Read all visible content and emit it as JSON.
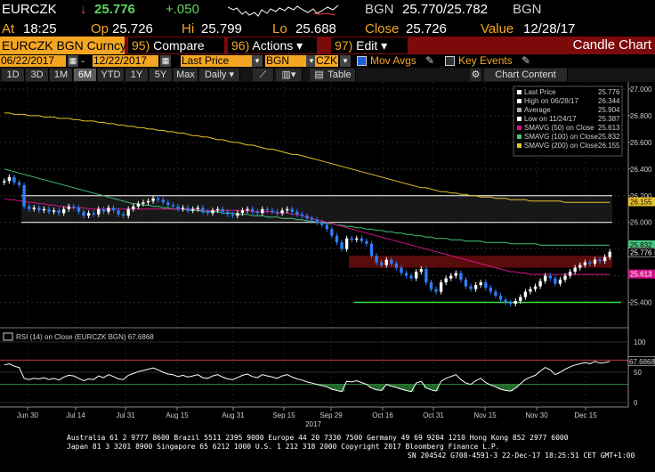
{
  "colors": {
    "amber": "#f4a623",
    "bg": "#000000",
    "menu_red": "#7d0a0a",
    "candle_up": "#ffffff",
    "candle_down": "#2d7fff",
    "sma50": "#d4148c",
    "sma100": "#44c47a",
    "sma200": "#e8c42c",
    "support": "#33dd33",
    "resistance_zone": "#5a0b0b"
  },
  "quote": {
    "ticker": "EURCZK",
    "last": "25.776",
    "arrow": "↓",
    "change": "+.050",
    "currency": "BGN",
    "bid_ask": "25.770/25.782",
    "currency2": "BGN",
    "at_label": "At",
    "time": "18:25",
    "open_label": "Op",
    "open": "25.726",
    "high_label": "Hi",
    "high": "25.799",
    "low_label": "Lo",
    "low": "25.688",
    "close_label": "Close",
    "close": "25.726",
    "value_label": "Value",
    "value_date": "12/28/17"
  },
  "menubar": {
    "security": "EURCZK BGN Curncy",
    "btn_compare_num": "95)",
    "btn_compare": "Compare",
    "btn_actions_num": "96)",
    "btn_actions": "Actions ▾",
    "btn_edit_num": "97)",
    "btn_edit": "Edit ▾",
    "title": "Candle Chart"
  },
  "params": {
    "start_date": "06/22/2017",
    "end_date": "12/22/2017",
    "field": "Last Price",
    "pricing_source": "BGN",
    "currency": "CZK",
    "mov_avgs": "Mov Avgs",
    "key_events": "Key Events"
  },
  "ranges": [
    "1D",
    "3D",
    "1M",
    "6M",
    "YTD",
    "1Y",
    "5Y",
    "Max"
  ],
  "selected_range": "6M",
  "periodicity": "Daily ▾",
  "table_btn": "Table",
  "chart_content_btn": "Chart Content",
  "legend": [
    {
      "label": "Last Price",
      "value": "25.776"
    },
    {
      "label": "High on 06/28/17",
      "value": "26.344"
    },
    {
      "label": "Average",
      "value": "25.904"
    },
    {
      "label": "Low on 11/24/17",
      "value": "25.387"
    },
    {
      "label": "SMAVG (50) on Close",
      "value": "25.613"
    },
    {
      "label": "SMAVG (100) on Close",
      "value": "25.832"
    },
    {
      "label": "SMAVG (200) on Close",
      "value": "26.155"
    }
  ],
  "rsi_label": "RSI (14) on Close (EURCZK BGN) 67.6868",
  "rsi_value_tag": "67.6868",
  "chart_data": {
    "type": "candlestick",
    "y_axis_ticks": [
      "27.000",
      "26.800",
      "26.600",
      "26.400",
      "26.200",
      "26.000",
      "25.800",
      "25.600",
      "25.400"
    ],
    "y_range": [
      25.25,
      27.0
    ],
    "rsi_ticks": [
      "100",
      "50",
      "0"
    ],
    "x_labels": [
      "Jun 30",
      "Jul 14",
      "Jul 31",
      "Aug 15",
      "Aug 31",
      "Sep 15",
      "Sep 29",
      "Oct 16",
      "Oct 31",
      "Nov 15",
      "Nov 30",
      "Dec 15"
    ],
    "x_year_label": "2017",
    "price_tags": {
      "sma200": "26.155",
      "sma100": "25.832",
      "last": "25.776",
      "sma50": "25.613"
    },
    "closes": [
      26.31,
      26.34,
      26.3,
      26.28,
      26.12,
      26.1,
      26.11,
      26.09,
      26.1,
      26.08,
      26.09,
      26.07,
      26.1,
      26.12,
      26.11,
      26.08,
      26.05,
      26.07,
      26.06,
      26.1,
      26.08,
      26.11,
      26.09,
      26.06,
      26.05,
      26.1,
      26.12,
      26.14,
      26.15,
      26.16,
      26.18,
      26.17,
      26.15,
      26.13,
      26.12,
      26.1,
      26.11,
      26.09,
      26.1,
      26.11,
      26.08,
      26.07,
      26.09,
      26.1,
      26.08,
      26.06,
      26.05,
      26.07,
      26.09,
      26.1,
      26.08,
      26.07,
      26.1,
      26.09,
      26.08,
      26.07,
      26.09,
      26.1,
      26.08,
      26.06,
      26.05,
      26.03,
      26.02,
      26.0,
      25.98,
      25.95,
      25.9,
      25.85,
      25.8,
      25.88,
      25.87,
      25.88,
      25.86,
      25.84,
      25.75,
      25.7,
      25.68,
      25.72,
      25.69,
      25.66,
      25.62,
      25.6,
      25.58,
      25.63,
      25.65,
      25.55,
      25.5,
      25.48,
      25.55,
      25.58,
      25.6,
      25.62,
      25.57,
      25.52,
      25.5,
      25.53,
      25.55,
      25.51,
      25.48,
      25.45,
      25.42,
      25.4,
      25.39,
      25.41,
      25.44,
      25.48,
      25.5,
      25.52,
      25.56,
      25.6,
      25.58,
      25.54,
      25.57,
      25.6,
      25.63,
      25.66,
      25.68,
      25.7,
      25.69,
      25.72,
      25.71,
      25.74,
      25.78
    ],
    "sma50": [
      26.18,
      26.17,
      26.17,
      26.16,
      26.16,
      26.15,
      26.15,
      26.14,
      26.14,
      26.13,
      26.13,
      26.12,
      26.12,
      26.11,
      26.11,
      26.11,
      26.11,
      26.1,
      26.1,
      26.1,
      26.1,
      26.1,
      26.1,
      26.1,
      26.1,
      26.1,
      26.1,
      26.1,
      26.1,
      26.1,
      26.1,
      26.1,
      26.1,
      26.1,
      26.1,
      26.1,
      26.1,
      26.1,
      26.1,
      26.1,
      26.09,
      26.09,
      26.09,
      26.09,
      26.09,
      26.09,
      26.09,
      26.09,
      26.09,
      26.09,
      26.08,
      26.08,
      26.08,
      26.08,
      26.08,
      26.07,
      26.07,
      26.07,
      26.06,
      26.06,
      26.05,
      26.04,
      26.03,
      26.02,
      26.01,
      26.0,
      25.99,
      25.98,
      25.97,
      25.96,
      25.95,
      25.94,
      25.93,
      25.92,
      25.91,
      25.9,
      25.89,
      25.88,
      25.87,
      25.86,
      25.85,
      25.84,
      25.83,
      25.82,
      25.81,
      25.8,
      25.79,
      25.78,
      25.77,
      25.76,
      25.75,
      25.74,
      25.73,
      25.72,
      25.71,
      25.7,
      25.69,
      25.68,
      25.67,
      25.66,
      25.65,
      25.64,
      25.63,
      25.63,
      25.62,
      25.62,
      25.61,
      25.61,
      25.61,
      25.61,
      25.61,
      25.61,
      25.61,
      25.61,
      25.61,
      25.61,
      25.61,
      25.61,
      25.61,
      25.61,
      25.61,
      25.61,
      25.61
    ],
    "sma100": [
      26.4,
      26.39,
      26.38,
      26.37,
      26.36,
      26.35,
      26.34,
      26.33,
      26.32,
      26.31,
      26.3,
      26.29,
      26.28,
      26.27,
      26.26,
      26.25,
      26.24,
      26.23,
      26.22,
      26.21,
      26.2,
      26.19,
      26.18,
      26.17,
      26.16,
      26.15,
      26.14,
      26.14,
      26.13,
      26.13,
      26.12,
      26.12,
      26.11,
      26.11,
      26.1,
      26.1,
      26.1,
      26.09,
      26.09,
      26.09,
      26.08,
      26.08,
      26.08,
      26.08,
      26.07,
      26.07,
      26.07,
      26.06,
      26.06,
      26.06,
      26.05,
      26.05,
      26.05,
      26.04,
      26.04,
      26.04,
      26.03,
      26.03,
      26.03,
      26.02,
      26.02,
      26.01,
      26.01,
      26.0,
      26.0,
      25.99,
      25.99,
      25.98,
      25.98,
      25.97,
      25.97,
      25.96,
      25.96,
      25.95,
      25.95,
      25.94,
      25.94,
      25.93,
      25.93,
      25.92,
      25.92,
      25.91,
      25.91,
      25.9,
      25.9,
      25.89,
      25.89,
      25.88,
      25.88,
      25.88,
      25.87,
      25.87,
      25.87,
      25.86,
      25.86,
      25.86,
      25.86,
      25.85,
      25.85,
      25.85,
      25.85,
      25.85,
      25.84,
      25.84,
      25.84,
      25.84,
      25.84,
      25.84,
      25.83,
      25.83,
      25.83,
      25.83,
      25.83,
      25.83,
      25.83,
      25.83,
      25.83,
      25.83,
      25.83,
      25.83,
      25.83,
      25.83,
      25.83
    ],
    "sma200": [
      26.82,
      26.82,
      26.81,
      26.81,
      26.81,
      26.8,
      26.8,
      26.8,
      26.79,
      26.79,
      26.79,
      26.78,
      26.78,
      26.78,
      26.77,
      26.77,
      26.76,
      26.76,
      26.76,
      26.75,
      26.75,
      26.74,
      26.74,
      26.73,
      26.73,
      26.72,
      26.72,
      26.71,
      26.71,
      26.7,
      26.7,
      26.69,
      26.69,
      26.68,
      26.68,
      26.67,
      26.67,
      26.66,
      26.65,
      26.65,
      26.64,
      26.64,
      26.63,
      26.62,
      26.62,
      26.61,
      26.6,
      26.6,
      26.59,
      26.58,
      26.58,
      26.57,
      26.56,
      26.55,
      26.55,
      26.54,
      26.53,
      26.52,
      26.51,
      26.51,
      26.5,
      26.49,
      26.48,
      26.47,
      26.46,
      26.45,
      26.44,
      26.43,
      26.42,
      26.41,
      26.4,
      26.39,
      26.38,
      26.37,
      26.36,
      26.35,
      26.34,
      26.33,
      26.32,
      26.31,
      26.3,
      26.29,
      26.28,
      26.27,
      26.26,
      26.26,
      26.25,
      26.24,
      26.23,
      26.23,
      26.22,
      26.22,
      26.21,
      26.21,
      26.2,
      26.2,
      26.19,
      26.19,
      26.19,
      26.18,
      26.18,
      26.18,
      26.17,
      26.17,
      26.17,
      26.17,
      26.16,
      26.16,
      26.16,
      26.16,
      26.16,
      26.16,
      26.16,
      26.15,
      26.15,
      26.15,
      26.15,
      26.15,
      26.15,
      26.15,
      26.15,
      26.15,
      26.15
    ],
    "rsi": [
      62,
      64,
      60,
      58,
      40,
      38,
      40,
      39,
      41,
      38,
      40,
      37,
      42,
      45,
      44,
      40,
      36,
      39,
      38,
      44,
      41,
      46,
      43,
      39,
      38,
      45,
      48,
      51,
      53,
      55,
      57,
      54,
      50,
      47,
      46,
      43,
      45,
      42,
      44,
      46,
      41,
      40,
      44,
      46,
      42,
      39,
      38,
      41,
      45,
      47,
      43,
      41,
      46,
      44,
      42,
      40,
      44,
      46,
      42,
      39,
      37,
      34,
      32,
      30,
      28,
      26,
      22,
      20,
      18,
      35,
      34,
      36,
      33,
      30,
      24,
      21,
      20,
      30,
      27,
      25,
      22,
      20,
      18,
      32,
      35,
      24,
      21,
      19,
      35,
      40,
      43,
      46,
      38,
      32,
      30,
      36,
      40,
      33,
      29,
      26,
      22,
      20,
      19,
      24,
      31,
      38,
      42,
      45,
      52,
      58,
      54,
      46,
      50,
      55,
      59,
      62,
      64,
      66,
      64,
      68,
      65,
      66,
      68
    ],
    "resistance_zone": [
      25.66,
      25.75
    ],
    "range_box": [
      26.0,
      26.2
    ],
    "support_level": 25.4
  },
  "footer": {
    "line1": "Australia 61 2 9777 8600 Brazil 5511 2395 9000 Europe 44 20 7330 7500 Germany 49 69 9204 1210 Hong Kong 852 2977 6000",
    "line2": "Japan 81 3 3201 8900        Singapore 65 6212 1000     U.S. 1 212 318 2000         Copyright 2017 Bloomberg Finance L.P.",
    "line3": "SN 204542 G708-4591-3 22-Dec-17 18:25:51 CET  GMT+1:00"
  }
}
